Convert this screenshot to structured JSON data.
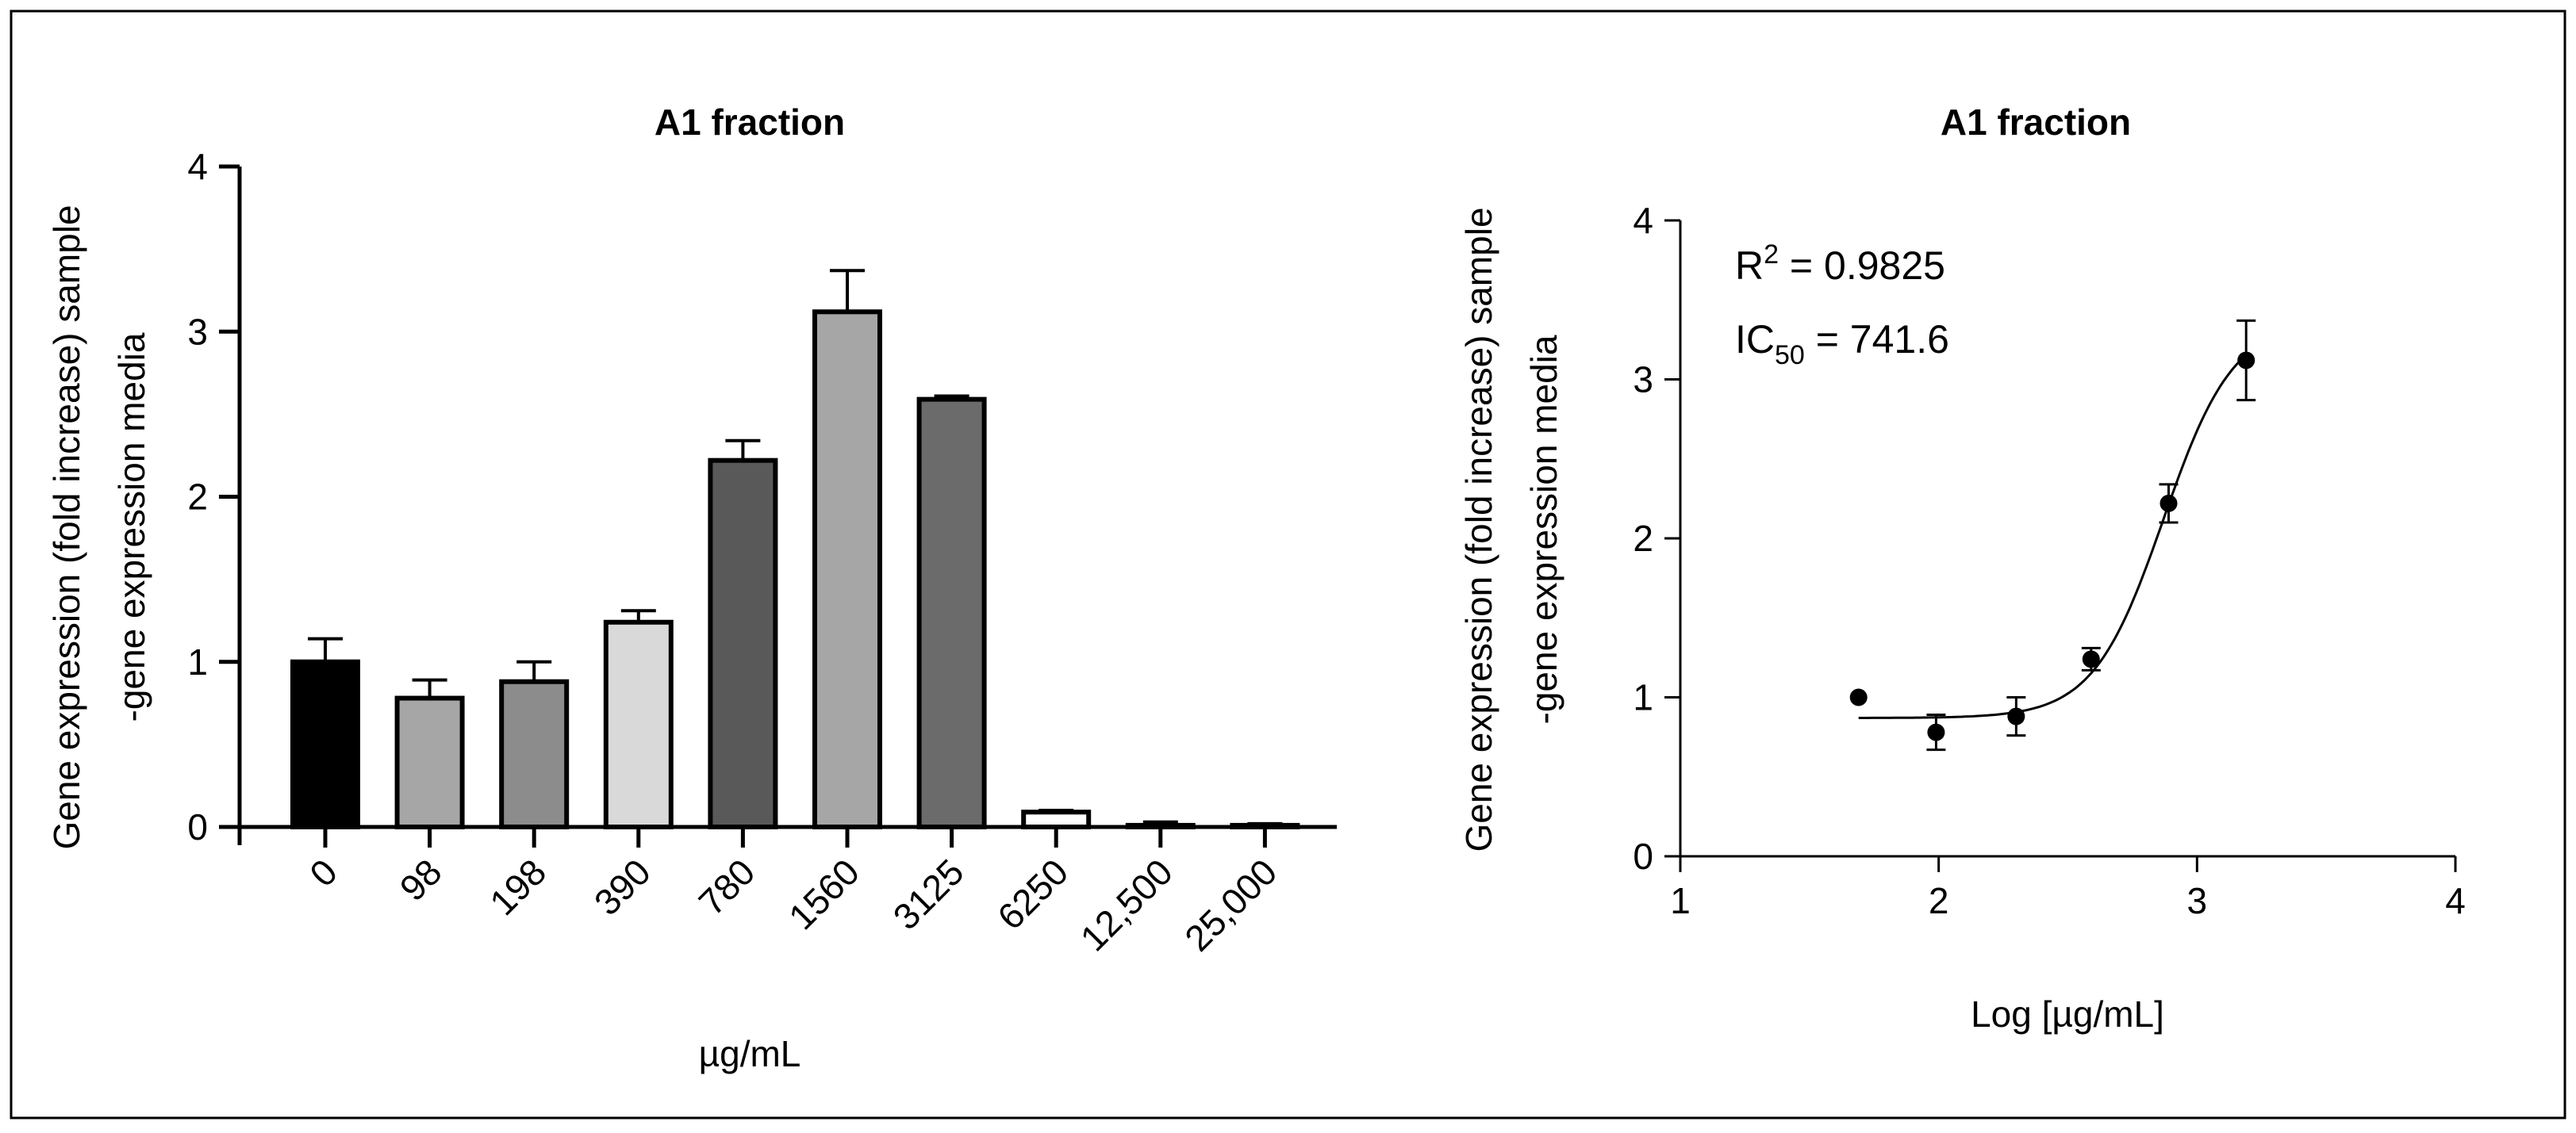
{
  "chart_data": [
    {
      "type": "bar",
      "title": "A1 fraction",
      "xlabel": "µg/mL",
      "ylabel_line1": "Gene expression (fold increase) sample",
      "ylabel_line2": "-gene expression media",
      "ylim": [
        0,
        4
      ],
      "yticks": [
        "0",
        "1",
        "2",
        "3",
        "4"
      ],
      "categories": [
        "0",
        "98",
        "198",
        "390",
        "780",
        "1560",
        "3125",
        "6250",
        "12,500",
        "25,000"
      ],
      "values": [
        1.0,
        0.78,
        0.88,
        1.24,
        2.22,
        3.12,
        2.59,
        0.09,
        0.01,
        0.01
      ],
      "errors": [
        0.14,
        0.11,
        0.12,
        0.07,
        0.12,
        0.25,
        0.02,
        0.01,
        0.02,
        0.01
      ],
      "colors": [
        "#000000",
        "#a6a6a6",
        "#8c8c8c",
        "#d9d9d9",
        "#595959",
        "#a6a6a6",
        "#6b6b6b",
        "#ffffff",
        "#ffffff",
        "#ffffff"
      ]
    },
    {
      "type": "scatter",
      "title": "A1 fraction",
      "xlabel": "Log [µg/mL]",
      "ylabel_line1": "Gene expression (fold increase) sample",
      "ylabel_line2": "-gene expression media",
      "xlim": [
        1,
        4
      ],
      "ylim": [
        0,
        4
      ],
      "xticks": [
        "1",
        "2",
        "3",
        "4"
      ],
      "yticks": [
        "0",
        "1",
        "2",
        "3",
        "4"
      ],
      "x": [
        1.69,
        1.99,
        2.3,
        2.59,
        2.89,
        3.19
      ],
      "y": [
        1.0,
        0.78,
        0.88,
        1.24,
        2.22,
        3.12
      ],
      "errors": [
        0.0,
        0.11,
        0.12,
        0.07,
        0.12,
        0.25
      ],
      "fit": {
        "bottom": 0.87,
        "top": 3.37,
        "logIC50": 2.87,
        "hill": 3.2,
        "x_from": 1.69,
        "x_to": 3.19
      },
      "annotation_r2_label": "R",
      "annotation_r2_sup": "2",
      "annotation_r2_value": " = 0.9825",
      "annotation_ic50_label": "IC",
      "annotation_ic50_sub": "50",
      "annotation_ic50_value": " = 741.6"
    }
  ]
}
